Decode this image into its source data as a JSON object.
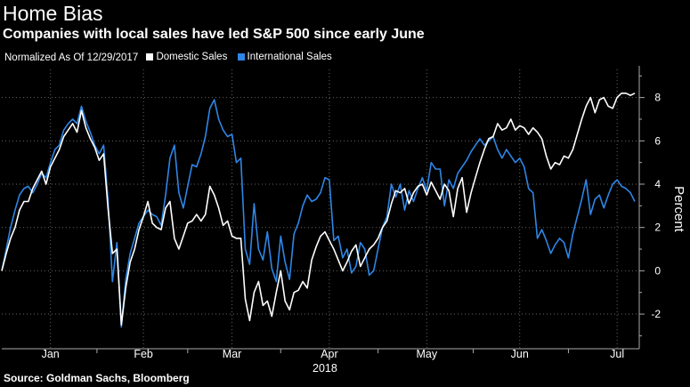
{
  "header": {
    "title": "Home Bias",
    "subtitle": "Companies with local sales have led S&P 500 since early June"
  },
  "legend": {
    "note": "Normalized As Of 12/29/2017",
    "items": [
      {
        "label": "Domestic Sales",
        "color": "#ffffff"
      },
      {
        "label": "International Sales",
        "color": "#2f86e6"
      }
    ]
  },
  "footer": {
    "source": "Source: Goldman Sachs, Bloomberg"
  },
  "chart_data": {
    "type": "line",
    "ylabel": "Percent",
    "xlabel": "2018",
    "ylim": [
      -3.6,
      9.3
    ],
    "yticks": [
      -2,
      0,
      2,
      4,
      6,
      8
    ],
    "xrange": [
      0,
      144
    ],
    "xticks": [
      {
        "label": "Jan",
        "x": 11
      },
      {
        "label": "Feb",
        "x": 32
      },
      {
        "label": "Mar",
        "x": 52
      },
      {
        "label": "Apr",
        "x": 74
      },
      {
        "label": "May",
        "x": 96
      },
      {
        "label": "Jun",
        "x": 117
      },
      {
        "label": "Jul",
        "x": 139
      }
    ],
    "year_label": "2018",
    "grid": true,
    "legend_position": "top-left",
    "series": [
      {
        "name": "Domestic Sales",
        "color": "#ffffff",
        "points": [
          [
            0,
            0
          ],
          [
            1,
            0.8
          ],
          [
            2,
            1.5
          ],
          [
            3,
            2.0
          ],
          [
            4,
            2.8
          ],
          [
            5,
            3.2
          ],
          [
            6,
            3.2
          ],
          [
            7,
            3.8
          ],
          [
            8,
            4.2
          ],
          [
            9,
            4.6
          ],
          [
            10,
            4.0
          ],
          [
            11,
            4.8
          ],
          [
            12,
            5.2
          ],
          [
            13,
            5.6
          ],
          [
            14,
            6.2
          ],
          [
            15,
            6.5
          ],
          [
            16,
            6.8
          ],
          [
            17,
            6.4
          ],
          [
            18,
            7.4
          ],
          [
            19,
            6.6
          ],
          [
            20,
            6.1
          ],
          [
            21,
            5.7
          ],
          [
            22,
            5.1
          ],
          [
            23,
            5.4
          ],
          [
            24,
            2.9
          ],
          [
            25,
            0.8
          ],
          [
            26,
            1.0
          ],
          [
            27,
            -2.5
          ],
          [
            28,
            -0.8
          ],
          [
            29,
            0.4
          ],
          [
            30,
            1.0
          ],
          [
            31,
            1.9
          ],
          [
            32,
            2.5
          ],
          [
            33,
            3.2
          ],
          [
            34,
            2.2
          ],
          [
            35,
            2.0
          ],
          [
            36,
            1.9
          ],
          [
            37,
            2.9
          ],
          [
            38,
            3.2
          ],
          [
            39,
            1.5
          ],
          [
            40,
            1.0
          ],
          [
            41,
            1.6
          ],
          [
            42,
            2.2
          ],
          [
            43,
            2.3
          ],
          [
            44,
            2.6
          ],
          [
            45,
            2.3
          ],
          [
            46,
            2.6
          ],
          [
            47,
            3.9
          ],
          [
            48,
            3.5
          ],
          [
            49,
            2.9
          ],
          [
            50,
            2.1
          ],
          [
            51,
            2.3
          ],
          [
            52,
            1.6
          ],
          [
            53,
            1.5
          ],
          [
            54,
            1.5
          ],
          [
            55,
            -1.3
          ],
          [
            56,
            -2.3
          ],
          [
            57,
            -1.0
          ],
          [
            58,
            -0.5
          ],
          [
            59,
            -1.6
          ],
          [
            60,
            -1.4
          ],
          [
            61,
            -2.1
          ],
          [
            62,
            -1.0
          ],
          [
            63,
            0.0
          ],
          [
            64,
            -1.4
          ],
          [
            65,
            -1.8
          ],
          [
            66,
            -1.0
          ],
          [
            67,
            -0.9
          ],
          [
            68,
            -0.5
          ],
          [
            69,
            -0.8
          ],
          [
            70,
            0.5
          ],
          [
            71,
            1.1
          ],
          [
            72,
            1.6
          ],
          [
            73,
            1.8
          ],
          [
            74,
            1.4
          ],
          [
            75,
            1.0
          ],
          [
            76,
            0.5
          ],
          [
            77,
            0.0
          ],
          [
            78,
            0.4
          ],
          [
            79,
            0.9
          ],
          [
            80,
            1.2
          ],
          [
            81,
            0.2
          ],
          [
            82,
            0.6
          ],
          [
            83,
            1.0
          ],
          [
            84,
            1.2
          ],
          [
            85,
            1.5
          ],
          [
            86,
            2.0
          ],
          [
            87,
            2.3
          ],
          [
            88,
            3.1
          ],
          [
            89,
            3.7
          ],
          [
            90,
            3.6
          ],
          [
            91,
            3.8
          ],
          [
            92,
            3.1
          ],
          [
            93,
            3.6
          ],
          [
            94,
            3.9
          ],
          [
            95,
            4.0
          ],
          [
            96,
            3.5
          ],
          [
            97,
            4.1
          ],
          [
            98,
            3.7
          ],
          [
            99,
            3.3
          ],
          [
            100,
            4.0
          ],
          [
            101,
            3.7
          ],
          [
            102,
            2.5
          ],
          [
            103,
            3.8
          ],
          [
            104,
            4.3
          ],
          [
            105,
            2.7
          ],
          [
            106,
            3.6
          ],
          [
            107,
            4.3
          ],
          [
            108,
            5.0
          ],
          [
            109,
            5.6
          ],
          [
            110,
            6.1
          ],
          [
            111,
            6.2
          ],
          [
            112,
            6.8
          ],
          [
            113,
            6.5
          ],
          [
            114,
            6.6
          ],
          [
            115,
            7.0
          ],
          [
            116,
            6.5
          ],
          [
            117,
            6.7
          ],
          [
            118,
            6.6
          ],
          [
            119,
            6.3
          ],
          [
            120,
            6.6
          ],
          [
            121,
            6.4
          ],
          [
            122,
            6.1
          ],
          [
            123,
            5.3
          ],
          [
            124,
            4.7
          ],
          [
            125,
            5.0
          ],
          [
            126,
            4.9
          ],
          [
            127,
            5.3
          ],
          [
            128,
            5.2
          ],
          [
            129,
            5.6
          ],
          [
            130,
            6.3
          ],
          [
            131,
            7.0
          ],
          [
            132,
            7.6
          ],
          [
            133,
            8.0
          ],
          [
            134,
            7.3
          ],
          [
            135,
            7.9
          ],
          [
            136,
            8.0
          ],
          [
            137,
            7.6
          ],
          [
            138,
            7.5
          ],
          [
            139,
            8.0
          ],
          [
            140,
            8.2
          ],
          [
            141,
            8.2
          ],
          [
            142,
            8.1
          ],
          [
            143,
            8.2
          ]
        ]
      },
      {
        "name": "International Sales",
        "color": "#2f86e6",
        "points": [
          [
            0,
            0
          ],
          [
            1,
            1.0
          ],
          [
            2,
            2.0
          ],
          [
            3,
            2.8
          ],
          [
            4,
            3.5
          ],
          [
            5,
            3.8
          ],
          [
            6,
            3.9
          ],
          [
            7,
            3.6
          ],
          [
            8,
            4.0
          ],
          [
            9,
            4.5
          ],
          [
            10,
            4.3
          ],
          [
            11,
            5.0
          ],
          [
            12,
            5.6
          ],
          [
            13,
            5.8
          ],
          [
            14,
            6.5
          ],
          [
            15,
            6.8
          ],
          [
            16,
            7.0
          ],
          [
            17,
            6.8
          ],
          [
            18,
            7.6
          ],
          [
            19,
            6.9
          ],
          [
            20,
            6.4
          ],
          [
            21,
            5.8
          ],
          [
            22,
            5.4
          ],
          [
            23,
            5.8
          ],
          [
            24,
            3.3
          ],
          [
            25,
            -0.5
          ],
          [
            26,
            1.3
          ],
          [
            27,
            -2.6
          ],
          [
            28,
            -0.4
          ],
          [
            29,
            0.8
          ],
          [
            30,
            1.5
          ],
          [
            31,
            2.2
          ],
          [
            32,
            2.5
          ],
          [
            33,
            2.8
          ],
          [
            34,
            2.6
          ],
          [
            35,
            2.5
          ],
          [
            36,
            2.1
          ],
          [
            37,
            3.5
          ],
          [
            38,
            5.2
          ],
          [
            39,
            5.8
          ],
          [
            40,
            3.6
          ],
          [
            41,
            2.9
          ],
          [
            42,
            3.9
          ],
          [
            43,
            4.9
          ],
          [
            44,
            4.8
          ],
          [
            45,
            5.4
          ],
          [
            46,
            6.2
          ],
          [
            47,
            7.5
          ],
          [
            48,
            7.9
          ],
          [
            49,
            7.0
          ],
          [
            50,
            6.5
          ],
          [
            51,
            6.2
          ],
          [
            52,
            6.3
          ],
          [
            53,
            5.0
          ],
          [
            54,
            5.2
          ],
          [
            55,
            1.0
          ],
          [
            56,
            0.3
          ],
          [
            57,
            3.1
          ],
          [
            58,
            1.0
          ],
          [
            59,
            0.5
          ],
          [
            60,
            1.8
          ],
          [
            61,
            0.1
          ],
          [
            62,
            -0.5
          ],
          [
            63,
            1.6
          ],
          [
            64,
            0.4
          ],
          [
            65,
            -0.4
          ],
          [
            66,
            1.7
          ],
          [
            67,
            2.2
          ],
          [
            68,
            3.0
          ],
          [
            69,
            3.5
          ],
          [
            70,
            3.2
          ],
          [
            71,
            3.3
          ],
          [
            72,
            3.6
          ],
          [
            73,
            4.3
          ],
          [
            74,
            4.2
          ],
          [
            75,
            1.4
          ],
          [
            76,
            1.6
          ],
          [
            77,
            0.6
          ],
          [
            78,
            1.0
          ],
          [
            79,
            -0.1
          ],
          [
            80,
            0.2
          ],
          [
            81,
            1.3
          ],
          [
            82,
            1.0
          ],
          [
            83,
            -0.2
          ],
          [
            84,
            0.0
          ],
          [
            85,
            1.0
          ],
          [
            86,
            2.0
          ],
          [
            87,
            2.5
          ],
          [
            88,
            4.0
          ],
          [
            89,
            3.4
          ],
          [
            90,
            4.0
          ],
          [
            91,
            2.8
          ],
          [
            92,
            3.7
          ],
          [
            93,
            3.2
          ],
          [
            94,
            3.8
          ],
          [
            95,
            4.3
          ],
          [
            96,
            3.7
          ],
          [
            97,
            5.0
          ],
          [
            98,
            4.7
          ],
          [
            99,
            4.7
          ],
          [
            100,
            3.0
          ],
          [
            101,
            4.2
          ],
          [
            102,
            3.8
          ],
          [
            103,
            4.5
          ],
          [
            104,
            4.8
          ],
          [
            105,
            5.1
          ],
          [
            106,
            5.5
          ],
          [
            107,
            5.8
          ],
          [
            108,
            6.1
          ],
          [
            109,
            5.8
          ],
          [
            110,
            6.0
          ],
          [
            111,
            6.2
          ],
          [
            112,
            5.6
          ],
          [
            113,
            5.2
          ],
          [
            114,
            5.6
          ],
          [
            115,
            5.3
          ],
          [
            116,
            5.0
          ],
          [
            117,
            5.2
          ],
          [
            118,
            4.8
          ],
          [
            119,
            3.8
          ],
          [
            120,
            3.6
          ],
          [
            121,
            1.5
          ],
          [
            122,
            1.9
          ],
          [
            123,
            1.4
          ],
          [
            124,
            0.8
          ],
          [
            125,
            1.2
          ],
          [
            126,
            1.5
          ],
          [
            127,
            1.3
          ],
          [
            128,
            0.6
          ],
          [
            129,
            1.7
          ],
          [
            130,
            2.5
          ],
          [
            131,
            3.3
          ],
          [
            132,
            4.2
          ],
          [
            133,
            2.6
          ],
          [
            134,
            3.3
          ],
          [
            135,
            3.5
          ],
          [
            136,
            2.9
          ],
          [
            137,
            3.5
          ],
          [
            138,
            4.0
          ],
          [
            139,
            4.2
          ],
          [
            140,
            3.9
          ],
          [
            141,
            3.8
          ],
          [
            142,
            3.6
          ],
          [
            143,
            3.2
          ]
        ]
      }
    ]
  }
}
